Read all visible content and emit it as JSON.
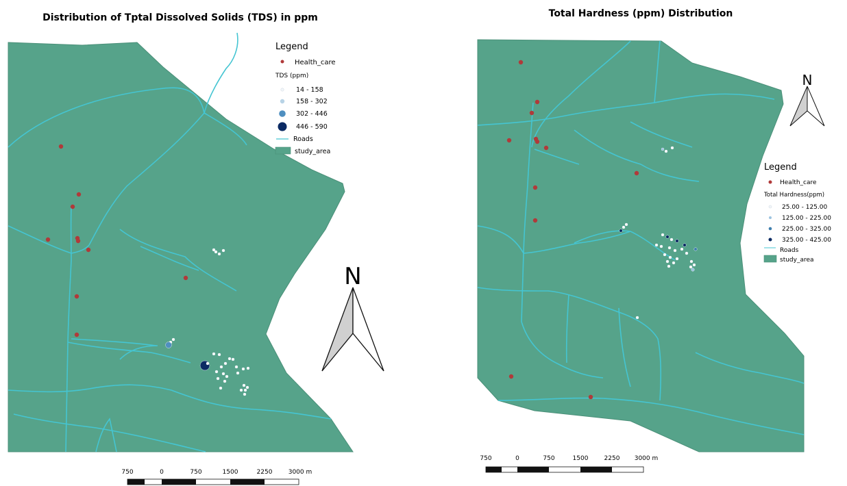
{
  "colors": {
    "study_area": "#56a38a",
    "study_area_edge": "#4a8f78",
    "roads": "#45c5d2",
    "health_care": "#b03a3a",
    "background": "#ffffff"
  },
  "left_map": {
    "title": "Distribution of Tptal Dissolved Solids (TDS) in ppm",
    "legend": {
      "heading": "Legend",
      "health_care": "Health_care",
      "class_title": "TDS (ppm)",
      "classes": [
        {
          "label": "14 - 158",
          "color": "#f2f6fa"
        },
        {
          "label": "158 - 302",
          "color": "#b8d3e6"
        },
        {
          "label": "302 - 446",
          "color": "#4f8fc0"
        },
        {
          "label": "446 - 590",
          "color": "#0b2a63"
        }
      ],
      "roads": "Roads",
      "study_area": "study_area"
    },
    "north_arrow": {
      "label": "N",
      "icon": "north-arrow-icon"
    },
    "scale_bar": {
      "labels": [
        "750",
        "0",
        "750",
        "1500",
        "2250",
        "3000 m"
      ]
    }
  },
  "right_map": {
    "title": "Total Hardness (ppm) Distribution",
    "legend": {
      "heading": "Legend",
      "health_care": "Health_care",
      "class_title": "Total Hardness(ppm)",
      "classes": [
        {
          "label": "25.00 - 125.00",
          "color": "#f2f6fa"
        },
        {
          "label": "125.00 - 225.00",
          "color": "#9cc3e0"
        },
        {
          "label": "225.00 - 325.00",
          "color": "#3f7fae"
        },
        {
          "label": "325.00 - 425.00",
          "color": "#0b2a63"
        }
      ],
      "roads": "Roads",
      "study_area": "study_area"
    },
    "north_arrow": {
      "label": "N",
      "icon": "north-arrow-icon"
    },
    "scale_bar": {
      "labels": [
        "750",
        "0",
        "750",
        "1500",
        "2250",
        "3000 m"
      ]
    }
  }
}
